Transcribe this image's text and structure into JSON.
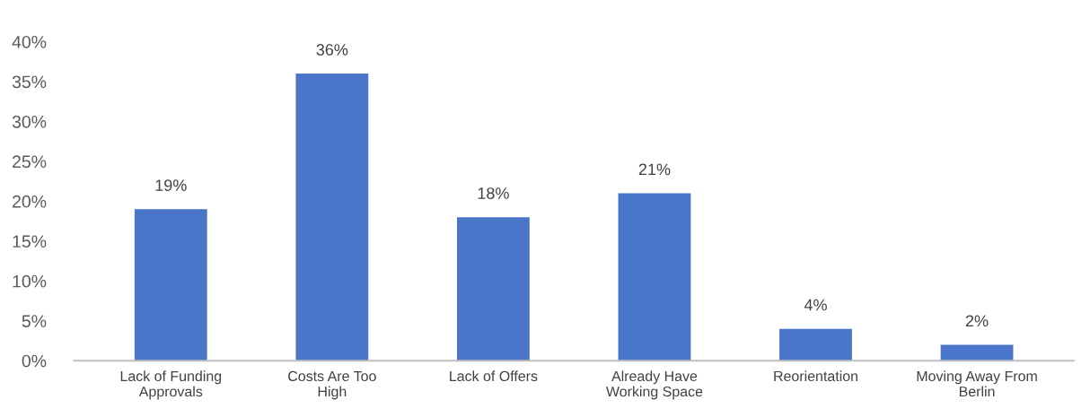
{
  "chart_data": {
    "type": "bar",
    "categories": [
      "Lack of Funding Approvals",
      "Costs Are Too High",
      "Lack of Offers",
      "Already Have Working Space",
      "Reorientation",
      "Moving Away From Berlin"
    ],
    "values": [
      19,
      36,
      18,
      21,
      4,
      2
    ],
    "value_labels": [
      "19%",
      "36%",
      "18%",
      "21%",
      "4%",
      "2%"
    ],
    "color": "#4a76c9",
    "ylim": [
      0,
      40
    ],
    "yticks": [
      {
        "value": 0,
        "label": "0%"
      },
      {
        "value": 5,
        "label": "5%"
      },
      {
        "value": 10,
        "label": "10%"
      },
      {
        "value": 15,
        "label": "15%"
      },
      {
        "value": 20,
        "label": "20%"
      },
      {
        "value": 25,
        "label": "25%"
      },
      {
        "value": 30,
        "label": "30%"
      },
      {
        "value": 35,
        "label": "35%"
      },
      {
        "value": 40,
        "label": "40%"
      }
    ],
    "grid": false
  }
}
